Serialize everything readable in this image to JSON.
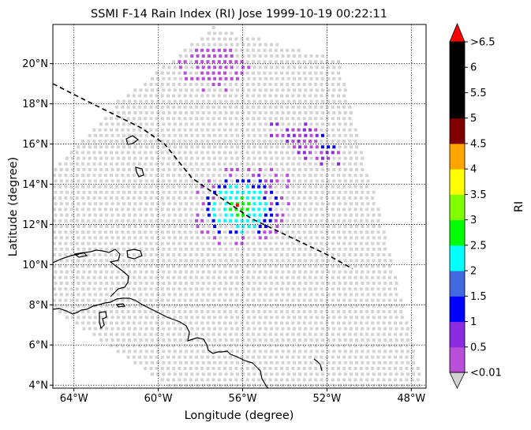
{
  "title": "SSMI F-14 Rain Index (RI) Jose 1999-10-19 00:22:11",
  "axes": {
    "xlabel": "Longitude (degree)",
    "ylabel": "Latitude (degree)",
    "xlim": [
      -65.0,
      -47.3
    ],
    "ylim": [
      3.85,
      21.95
    ],
    "xticks": [
      {
        "value": -64,
        "label": "64°W"
      },
      {
        "value": -60,
        "label": "60°W"
      },
      {
        "value": -56,
        "label": "56°W"
      },
      {
        "value": -52,
        "label": "52°W"
      },
      {
        "value": -48,
        "label": "48°W"
      }
    ],
    "yticks": [
      {
        "value": 4,
        "label": "4°N"
      },
      {
        "value": 6,
        "label": "6°N"
      },
      {
        "value": 8,
        "label": "8°N"
      },
      {
        "value": 10,
        "label": "10°N"
      },
      {
        "value": 12,
        "label": "12°N"
      },
      {
        "value": 14,
        "label": "14°N"
      },
      {
        "value": 16,
        "label": "16°N"
      },
      {
        "value": 18,
        "label": "18°N"
      },
      {
        "value": 20,
        "label": "20°N"
      }
    ],
    "grid": "dotted"
  },
  "colorbar": {
    "label": "RI",
    "tick_labels": [
      "<0.01",
      "0.5",
      "1",
      "1.5",
      "2",
      "2.5",
      "3",
      "3.5",
      "4",
      "4.5",
      "5",
      "5.5",
      "6",
      ">6.5"
    ],
    "colors": [
      "#b84fd8",
      "#8a2be2",
      "#0000ff",
      "#4169e1",
      "#00ffff",
      "#00ff00",
      "#7fff00",
      "#ffff00",
      "#ffa500",
      "#800000",
      "#000000",
      "#000000",
      "#000000"
    ],
    "under_color": "#d3d3d3",
    "over_color": "#ff0000"
  },
  "chart_data": {
    "type": "scatter",
    "title": "SSMI F-14 Rain Index (RI) Jose 1999-10-19 00:22:11",
    "xlabel": "Longitude (degree)",
    "ylabel": "Latitude (degree)",
    "swath": {
      "corners": [
        [
          -62.1,
          18.1
        ],
        [
          -57.5,
          21.9
        ],
        [
          -51.5,
          20.3
        ],
        [
          -47.4,
          3.9
        ],
        [
          -59.5,
          3.9
        ],
        [
          -65.0,
          7.8
        ],
        [
          -65.0,
          14.8
        ]
      ],
      "value": "<0.01"
    },
    "rain_regions": [
      {
        "label": "0.5",
        "lon_range": [
          -60.0,
          -51.0
        ],
        "lat_range": [
          10.0,
          21.0
        ]
      },
      {
        "label": "1",
        "lon_range": [
          -58.5,
          -51.5
        ],
        "lat_range": [
          10.5,
          16.5
        ]
      },
      {
        "label": "2",
        "lon_range": [
          -57.0,
          -53.5
        ],
        "lat_range": [
          11.8,
          13.8
        ]
      },
      {
        "label": "3",
        "lon_range": [
          -56.2,
          -55.2
        ],
        "lat_range": [
          12.2,
          13.2
        ]
      }
    ],
    "track": [
      [
        -65.0,
        19.0
      ],
      [
        -63.5,
        18.2
      ],
      [
        -60.8,
        16.8
      ],
      [
        -59.7,
        16.0
      ],
      [
        -58.4,
        14.3
      ],
      [
        -57.0,
        13.3
      ],
      [
        -55.6,
        12.3
      ],
      [
        -53.8,
        11.4
      ],
      [
        -52.0,
        10.5
      ],
      [
        -50.8,
        9.8
      ]
    ],
    "storm_center": [
      -56.2,
      12.9
    ]
  }
}
